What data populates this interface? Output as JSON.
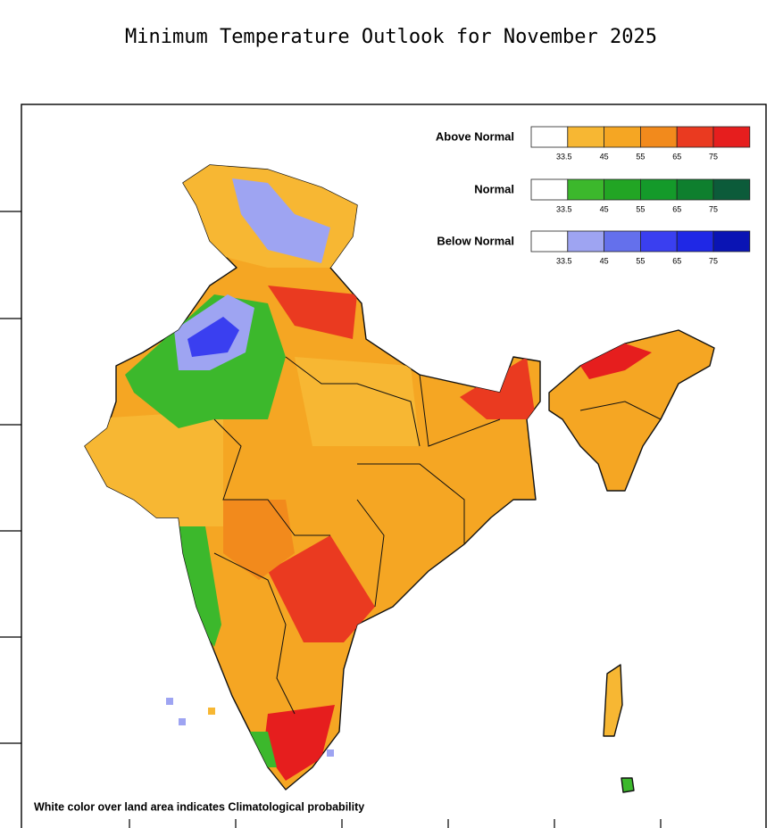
{
  "title": "Minimum Temperature Outlook for November 2025",
  "legend": [
    {
      "label": "Above Normal",
      "colors": [
        "#ffffff",
        "#f7b733",
        "#f5a623",
        "#f28a1c",
        "#ea3a20",
        "#e61e1e"
      ],
      "ticks": [
        "33.5",
        "45",
        "55",
        "65",
        "75"
      ]
    },
    {
      "label": "Normal",
      "colors": [
        "#ffffff",
        "#3cb82c",
        "#22a524",
        "#149a2a",
        "#0e7f2e",
        "#0c5b3a"
      ],
      "ticks": [
        "33.5",
        "45",
        "55",
        "65",
        "75"
      ]
    },
    {
      "label": "Below Normal",
      "colors": [
        "#ffffff",
        "#9ea4f2",
        "#6470ec",
        "#3a3ff0",
        "#1f28e6",
        "#0a14b4"
      ],
      "ticks": [
        "33.5",
        "45",
        "55",
        "65",
        "75"
      ]
    }
  ],
  "footnote": "White color over land area indicates Climatological probability"
}
